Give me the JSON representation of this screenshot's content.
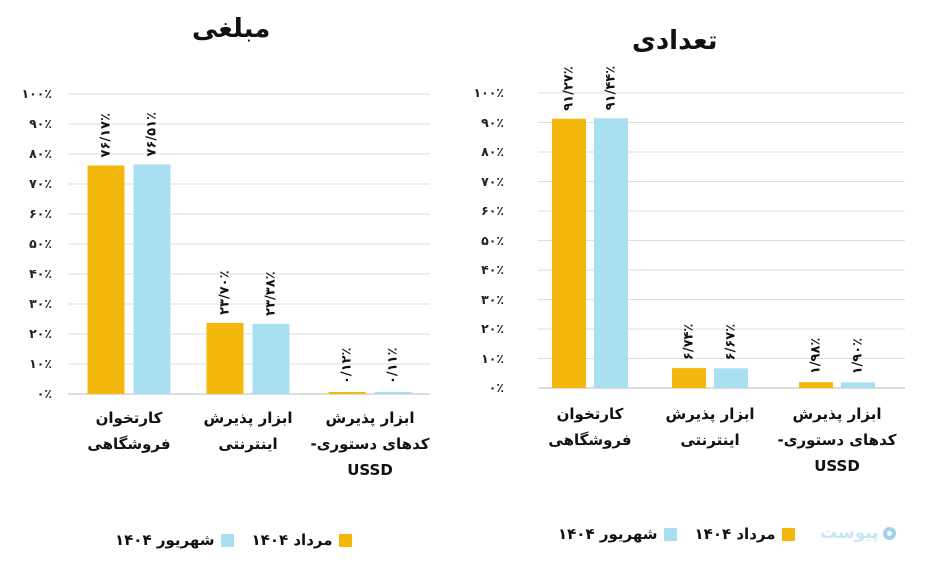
{
  "colors": {
    "series_1": "#F4B80D",
    "series_2": "#A8E0F2",
    "grid": "#dddddd"
  },
  "watermark": {
    "text": "پیوست",
    "icon": "piyvast-logo-icon"
  },
  "chart_data": [
    {
      "type": "bar",
      "title": "مبلغی",
      "categories": [
        [
          "کارتخوان",
          "فروشگاهی"
        ],
        [
          "ابزار پذیرش",
          "اینترنتی"
        ],
        [
          "ابزار پذیرش",
          "کدهای دستوری-",
          "USSD"
        ]
      ],
      "series": [
        {
          "name": "مرداد ۱۴۰۴",
          "values": [
            76.17,
            23.7,
            0.12
          ],
          "labels": [
            "۷۶/۱۷٪",
            "۲۳/۷۰٪",
            "۰/۱۲٪"
          ]
        },
        {
          "name": "شهریور ۱۴۰۴",
          "values": [
            76.51,
            23.38,
            0.11
          ],
          "labels": [
            "۷۶/۵۱٪",
            "۲۳/۳۸٪",
            "۰/۱۱٪"
          ]
        }
      ],
      "yticks": [
        "۰٪",
        "۱۰٪",
        "۲۰٪",
        "۳۰٪",
        "۴۰٪",
        "۵۰٪",
        "۶۰٪",
        "۷۰٪",
        "۸۰٪",
        "۹۰٪",
        "۱۰۰٪"
      ],
      "ylim": [
        0,
        100
      ],
      "grid": true,
      "legend_position": "bottom"
    },
    {
      "type": "bar",
      "title": "تعدادی",
      "categories": [
        [
          "کارتخوان",
          "فروشگاهی"
        ],
        [
          "ابزار پذیرش",
          "اینترنتی"
        ],
        [
          "ابزار پذیرش",
          "کدهای دستوری-",
          "USSD"
        ]
      ],
      "series": [
        {
          "name": "مرداد ۱۴۰۴",
          "values": [
            91.27,
            6.74,
            1.98
          ],
          "labels": [
            "۹۱/۲۷٪",
            "۶/۷۴٪",
            "۱/۹۸٪"
          ]
        },
        {
          "name": "شهریور ۱۴۰۴",
          "values": [
            91.44,
            6.67,
            1.9
          ],
          "labels": [
            "۹۱/۴۴٪",
            "۶/۶۷٪",
            "۱/۹۰٪"
          ]
        }
      ],
      "yticks": [
        "۰٪",
        "۱۰٪",
        "۲۰٪",
        "۳۰٪",
        "۴۰٪",
        "۵۰٪",
        "۶۰٪",
        "۷۰٪",
        "۸۰٪",
        "۹۰٪",
        "۱۰۰٪"
      ],
      "ylim": [
        0,
        100
      ],
      "grid": true,
      "legend_position": "bottom"
    }
  ]
}
